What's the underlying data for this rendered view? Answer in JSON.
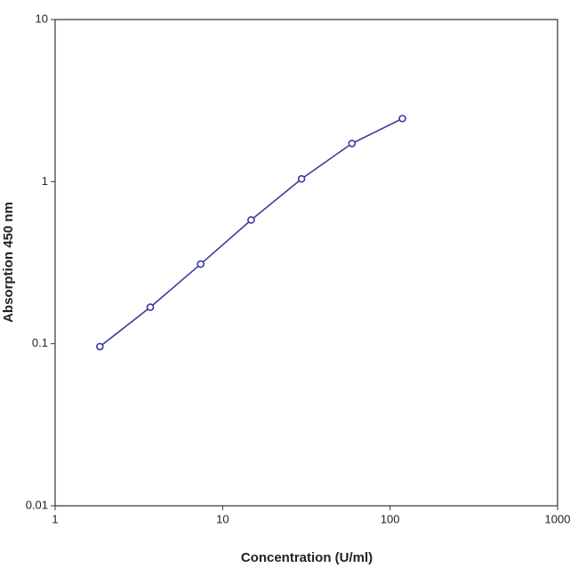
{
  "chart_data": {
    "type": "line",
    "x_label": "Concentration (U/ml)",
    "y_label": "Absorption 450 nm",
    "x": [
      1.85,
      3.7,
      7.4,
      14.8,
      29.6,
      59.2,
      118.5
    ],
    "series": [
      {
        "color": "#3b3ba0",
        "values": [
          0.096,
          0.168,
          0.31,
          0.58,
          1.04,
          1.72,
          2.45
        ]
      }
    ],
    "xlim": [
      1,
      1000
    ],
    "xticks": [
      1,
      10,
      100,
      1000
    ],
    "ylim": [
      0.01,
      10
    ],
    "yticks": [
      0.01,
      0.1,
      1,
      10
    ],
    "xscale": "log",
    "yscale": "log",
    "markers": true
  }
}
